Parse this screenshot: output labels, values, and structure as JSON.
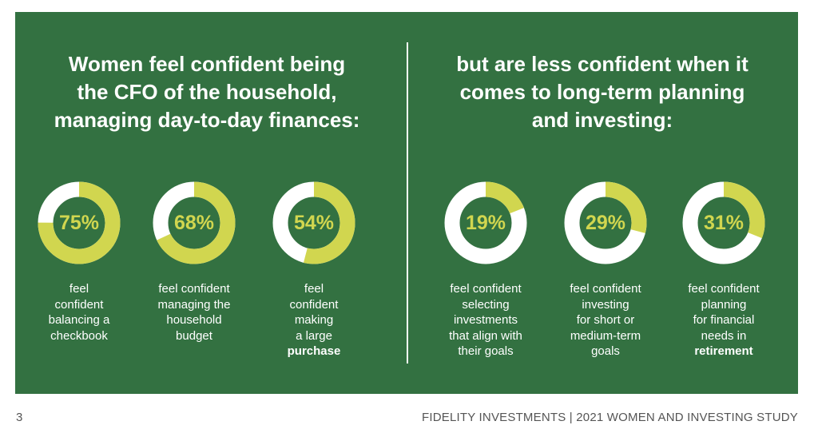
{
  "colors": {
    "panel": "#337141",
    "accent": "#d1d64f",
    "ring_track": "#ffffff",
    "text": "#ffffff"
  },
  "left_heading": [
    "Women feel confident being",
    "the CFO of the household,",
    "managing day-to-day finances:"
  ],
  "right_heading": [
    "but are less confident when it",
    "comes to long-term planning",
    "and investing:"
  ],
  "chart_data": {
    "type": "pie",
    "unit": "%",
    "items": [
      {
        "value": 75,
        "label": "75%",
        "caption": [
          "feel",
          "confident",
          "balancing a",
          "checkbook"
        ],
        "bold_last": false
      },
      {
        "value": 68,
        "label": "68%",
        "caption": [
          "feel confident",
          "managing the",
          "household",
          "budget"
        ],
        "bold_last": false
      },
      {
        "value": 54,
        "label": "54%",
        "caption": [
          "feel",
          "confident",
          "making",
          "a large",
          "purchase"
        ],
        "bold_last": true
      },
      {
        "value": 19,
        "label": "19%",
        "caption": [
          "feel confident",
          "selecting",
          "investments",
          "that align with",
          "their goals"
        ],
        "bold_last": false
      },
      {
        "value": 29,
        "label": "29%",
        "caption": [
          "feel confident",
          "investing",
          "for short or",
          "medium-term",
          "goals"
        ],
        "bold_last": false
      },
      {
        "value": 31,
        "label": "31%",
        "caption": [
          "feel confident",
          "planning",
          "for financial",
          "needs in",
          "retirement"
        ],
        "bold_last": true
      }
    ]
  },
  "footer": {
    "page_number": "3",
    "source": "FIDELITY INVESTMENTS | 2021 WOMEN AND INVESTING STUDY"
  }
}
